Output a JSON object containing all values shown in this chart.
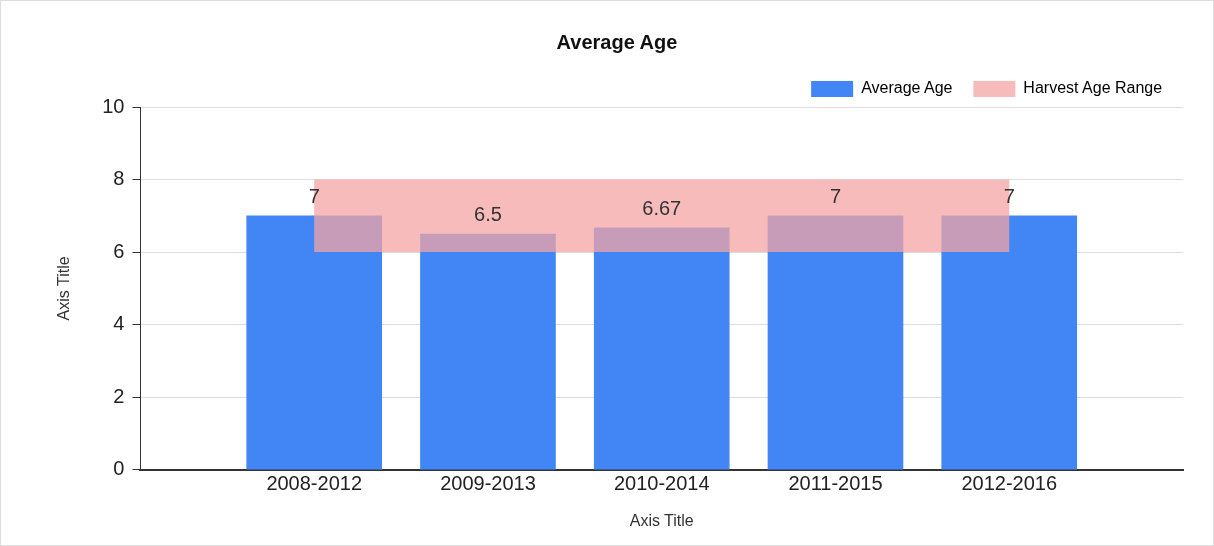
{
  "chart_data": {
    "type": "bar",
    "title": "Average Age",
    "xlabel": "Axis Title",
    "ylabel": "Axis Title",
    "categories": [
      "2008-2012",
      "2009-2013",
      "2010-2014",
      "2011-2015",
      "2012-2016"
    ],
    "series": [
      {
        "name": "Average Age",
        "color": "#4285f4",
        "values": [
          7,
          6.5,
          6.67,
          7,
          7
        ]
      }
    ],
    "bands": [
      {
        "axis": "y",
        "from": 6,
        "to": 8,
        "label": "Harvest Age Range",
        "color": "#f4a4a4"
      }
    ],
    "ylim": [
      0,
      10
    ],
    "yticks": [
      0,
      2,
      4,
      6,
      8,
      10
    ],
    "grid": "y",
    "legend": "top right",
    "data_labels": true
  }
}
